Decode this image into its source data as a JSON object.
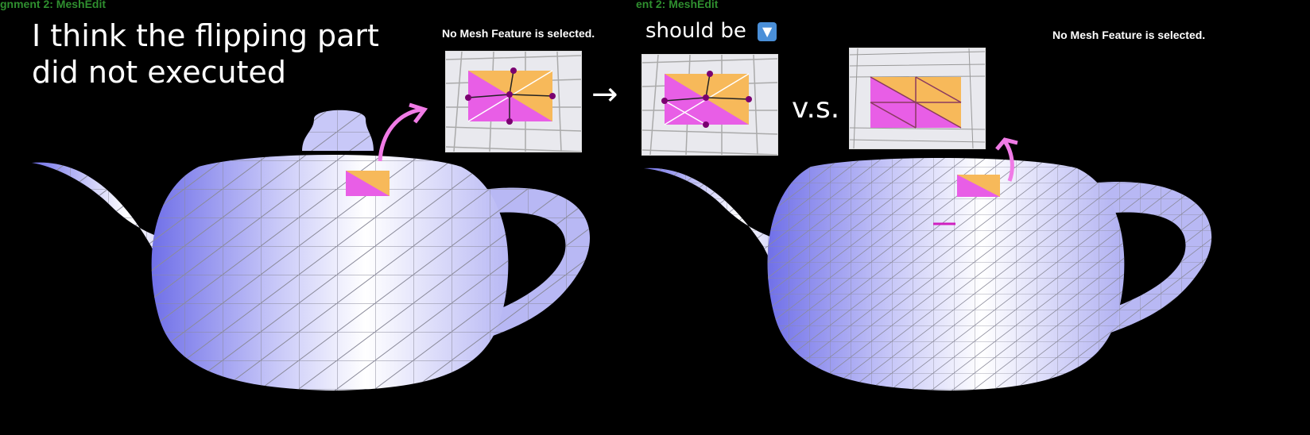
{
  "left_view": {
    "window_title": "gnment 2: MeshEdit",
    "status_text": "No Mesh Feature is selected."
  },
  "right_view": {
    "window_title": "ent 2: MeshEdit",
    "status_text": "No Mesh Feature is selected."
  },
  "annotations": {
    "main_note": "I think the flipping part did not executed",
    "should_be": "should be",
    "should_be_icon": "down-arrow-emoji-icon",
    "arrow": "→",
    "vs": "v.s."
  },
  "colors": {
    "background": "#000000",
    "title_green": "#2f8f2f",
    "mesh_blue": "#a9a9f2",
    "face_pink": "#e85ee6",
    "face_orange": "#f7b95a",
    "callout_pink": "#f07be6"
  }
}
